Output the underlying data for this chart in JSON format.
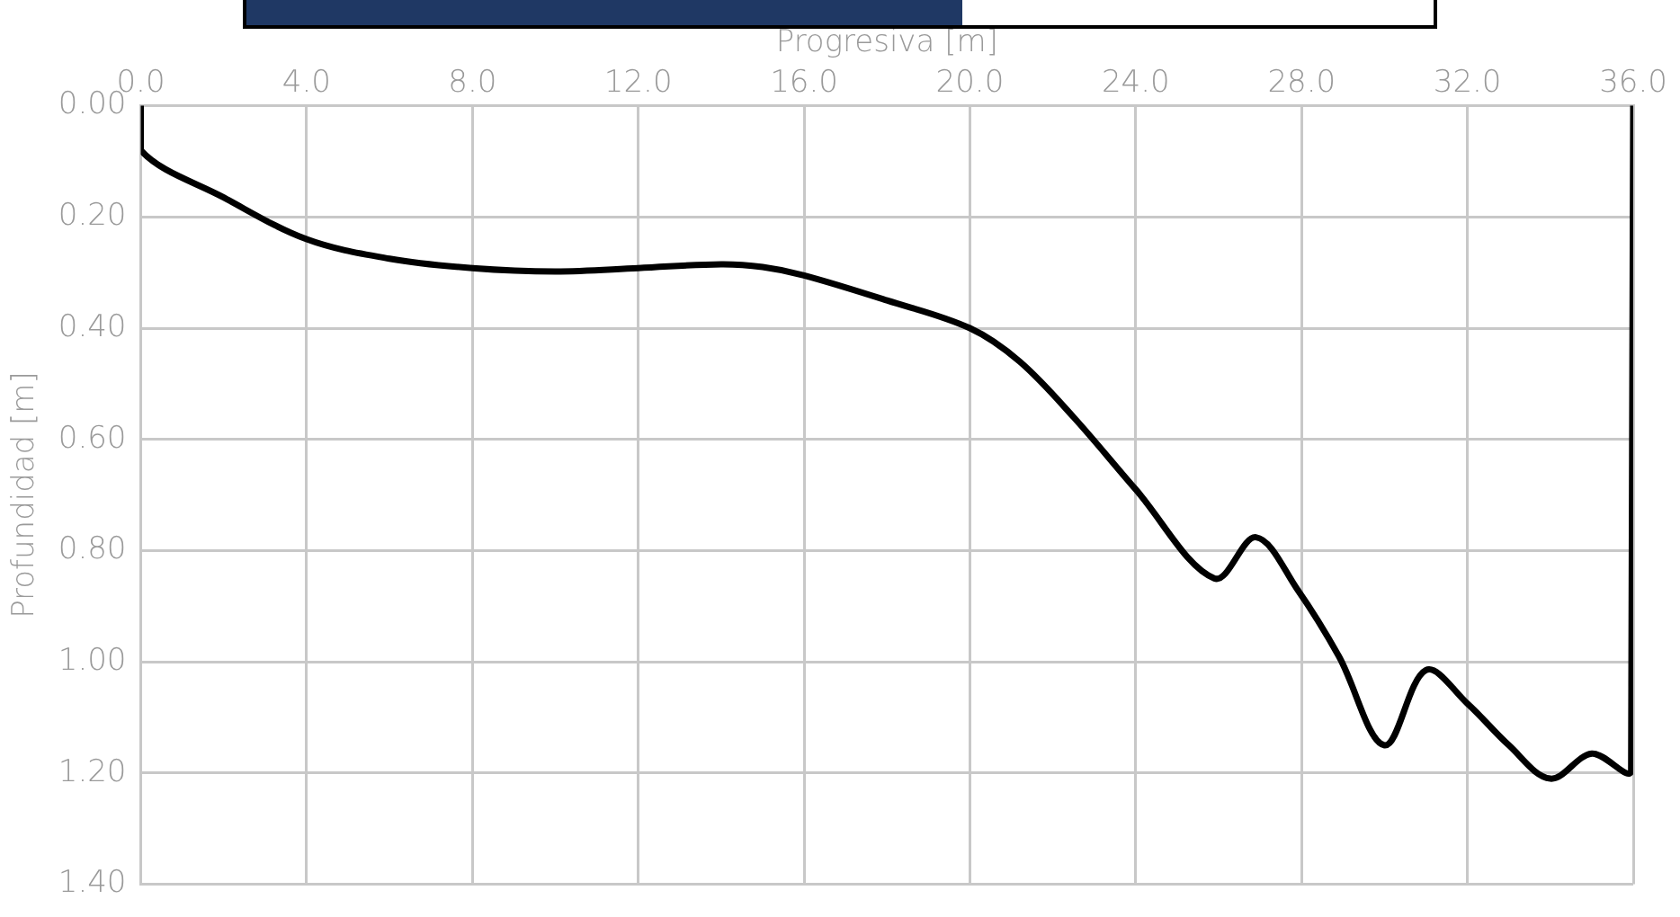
{
  "chart_data": {
    "type": "line",
    "xlabel": "Progresiva [m]",
    "ylabel": "Profundidad [m]",
    "x": [
      0,
      0,
      2,
      4,
      6,
      8,
      10,
      12,
      14,
      15,
      16,
      18,
      20,
      21.2,
      22.5,
      24,
      25.9,
      26.9,
      27.9,
      28.9,
      30,
      31,
      32,
      33,
      34,
      35,
      35.95,
      36
    ],
    "series": [
      {
        "color": "#000000",
        "values": [
          0,
          0.08,
          0.165,
          0.24,
          0.275,
          0.292,
          0.298,
          0.292,
          0.285,
          0.29,
          0.305,
          0.35,
          0.4,
          0.46,
          0.56,
          0.69,
          0.85,
          0.776,
          0.87,
          0.99,
          1.15,
          1.015,
          1.075,
          1.15,
          1.21,
          1.165,
          1.195,
          0
        ]
      }
    ],
    "xlim": [
      0,
      36
    ],
    "xticks": [
      {
        "value": 0,
        "label": "0.0"
      },
      {
        "value": 4,
        "label": "4.0"
      },
      {
        "value": 8,
        "label": "8.0"
      },
      {
        "value": 12,
        "label": "12.0"
      },
      {
        "value": 16,
        "label": "16.0"
      },
      {
        "value": 20,
        "label": "20.0"
      },
      {
        "value": 24,
        "label": "24.0"
      },
      {
        "value": 28,
        "label": "28.0"
      },
      {
        "value": 32,
        "label": "32.0"
      },
      {
        "value": 36,
        "label": "36.0"
      }
    ],
    "ylim": [
      1.4,
      0
    ],
    "yticks": [
      {
        "value": 0,
        "label": "0.00"
      },
      {
        "value": 0.2,
        "label": "0.20"
      },
      {
        "value": 0.4,
        "label": "0.40"
      },
      {
        "value": 0.6,
        "label": "0.60"
      },
      {
        "value": 0.8,
        "label": "0.80"
      },
      {
        "value": 1,
        "label": "1.00"
      },
      {
        "value": 1.2,
        "label": "1.20"
      },
      {
        "value": 1.4,
        "label": "1.40"
      }
    ],
    "grid": true,
    "legend": false,
    "marker": "none",
    "line_style": "solid"
  }
}
